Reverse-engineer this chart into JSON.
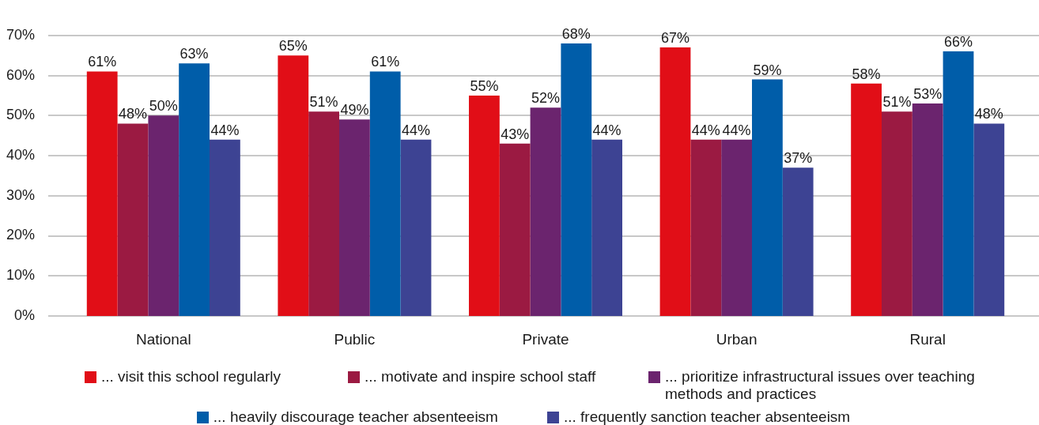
{
  "chart_data": {
    "type": "bar",
    "categories": [
      "National",
      "Public",
      "Private",
      "Urban",
      "Rural"
    ],
    "series": [
      {
        "name": "... visit this school regularly",
        "color": "#e10e17",
        "values": [
          61,
          65,
          55,
          67,
          58
        ],
        "value_labels": [
          "61%",
          "65%",
          "55%",
          "67%",
          "58%"
        ]
      },
      {
        "name": "... motivate and inspire school staff",
        "color": "#9b1a42",
        "values": [
          48,
          51,
          43,
          44,
          51
        ],
        "value_labels": [
          "48%",
          "51%",
          "43%",
          "44%",
          "51%"
        ]
      },
      {
        "name": "... prioritize infrastructural issues over teaching methods and practices",
        "color": "#6b246e",
        "values": [
          50,
          49,
          52,
          44,
          53
        ],
        "value_labels": [
          "50%",
          "49%",
          "52%",
          "44%",
          "53%"
        ]
      },
      {
        "name": "... heavily discourage teacher absenteeism",
        "color": "#005da9",
        "values": [
          63,
          61,
          68,
          59,
          66
        ],
        "value_labels": [
          "63%",
          "61%",
          "68%",
          "59%",
          "66%"
        ]
      },
      {
        "name": "... frequently sanction teacher absenteeism",
        "color": "#3d4393",
        "values": [
          44,
          44,
          44,
          37,
          48
        ],
        "value_labels": [
          "44%",
          "44%",
          "44%",
          "37%",
          "48%"
        ]
      }
    ],
    "ylim": [
      0,
      70
    ],
    "yticks": [
      {
        "value": 0,
        "label": "0%"
      },
      {
        "value": 10,
        "label": "10%"
      },
      {
        "value": 20,
        "label": "20%"
      },
      {
        "value": 30,
        "label": "30%"
      },
      {
        "value": 40,
        "label": "40%"
      },
      {
        "value": 50,
        "label": "50%"
      },
      {
        "value": 60,
        "label": "60%"
      },
      {
        "value": 70,
        "label": "70%"
      }
    ],
    "grid": "y",
    "legend": "bottom"
  }
}
